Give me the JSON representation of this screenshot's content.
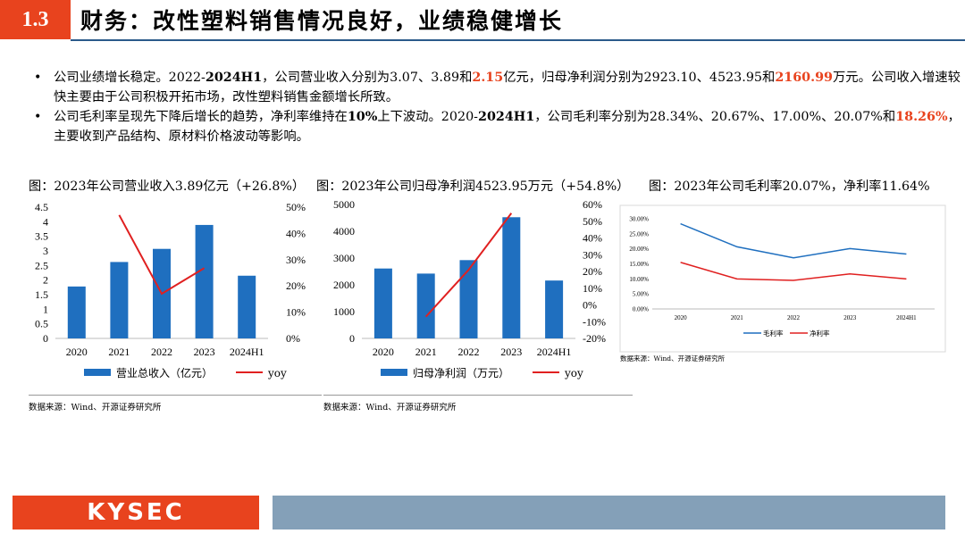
{
  "header": {
    "section_number": "1.3",
    "title": "财务：改性塑料销售情况良好，业绩稳健增长"
  },
  "bullets": [
    {
      "parts": [
        {
          "t": "公司业绩增长稳定。2022-"
        },
        {
          "t": "2024H1",
          "s": "b"
        },
        {
          "t": "，公司营业收入分别为3.07、3.89和"
        },
        {
          "t": "2.15",
          "s": "hl"
        },
        {
          "t": "亿元，归母净利润分别为2923.10、4523.95和"
        },
        {
          "t": "2160.99",
          "s": "hl"
        },
        {
          "t": "万元。公司收入增速较快主要由于公司积极开拓市场，改性塑料销售金额增长所致。"
        }
      ]
    },
    {
      "parts": [
        {
          "t": "公司毛利率呈现先下降后增长的趋势，净利率维持在"
        },
        {
          "t": "10%",
          "s": "b"
        },
        {
          "t": "上下波动。2020-"
        },
        {
          "t": "2024H1",
          "s": "b"
        },
        {
          "t": "，公司毛利率分别为28.34%、20.67%、17.00%、20.07%和"
        },
        {
          "t": "18.26%",
          "s": "hl"
        },
        {
          "t": "，主要收到产品结构、原材料价格波动等影响。"
        }
      ]
    }
  ],
  "captions": {
    "c1": "图：2023年公司营业收入3.89亿元（+26.8%）",
    "c2": "图：2023年公司归母净利润4523.95万元（+54.8%）",
    "c3": "图：2023年公司毛利率20.07%，净利率11.64%"
  },
  "sources": {
    "s1": "数据来源：Wind、开源证券研究所",
    "s2": "数据来源：Wind、开源证券研究所",
    "s3": "数据来源：Wind、开源证券研究所"
  },
  "footer": {
    "logo": "KYSEC"
  },
  "colors": {
    "accent": "#e8431e",
    "bar": "#1f6fbf",
    "line": "#e02020",
    "rule": "#2b5a8a"
  },
  "chart_data": [
    {
      "type": "bar",
      "categories": [
        "2020",
        "2021",
        "2022",
        "2023",
        "2024H1"
      ],
      "series": [
        {
          "name": "营业总收入（亿元）",
          "axis": "left",
          "kind": "bar",
          "values": [
            1.78,
            2.62,
            3.07,
            3.89,
            2.15
          ]
        },
        {
          "name": "yoy",
          "axis": "right",
          "kind": "line",
          "values": [
            null,
            0.47,
            0.17,
            0.268,
            null
          ]
        }
      ],
      "ylim_left": [
        0,
        4.5
      ],
      "yticks_left": [
        "0",
        "0.5",
        "1",
        "1.5",
        "2",
        "2.5",
        "3",
        "3.5",
        "4",
        "4.5"
      ],
      "ylim_right": [
        0,
        0.5
      ],
      "yticks_right": [
        "0%",
        "10%",
        "20%",
        "30%",
        "40%",
        "50%"
      ],
      "legend": "bottom"
    },
    {
      "type": "bar",
      "categories": [
        "2020",
        "2021",
        "2022",
        "2023",
        "2024H1"
      ],
      "series": [
        {
          "name": "归母净利润（万元）",
          "axis": "left",
          "kind": "bar",
          "values": [
            2610,
            2420,
            2923.1,
            4523.95,
            2160.99
          ]
        },
        {
          "name": "yoy",
          "axis": "right",
          "kind": "line",
          "values": [
            null,
            -0.07,
            0.21,
            0.548,
            null
          ]
        }
      ],
      "ylim_left": [
        0,
        5000
      ],
      "yticks_left": [
        "0",
        "1000",
        "2000",
        "3000",
        "4000",
        "5000"
      ],
      "ylim_right": [
        -0.2,
        0.6
      ],
      "yticks_right": [
        "-20%",
        "-10%",
        "0%",
        "10%",
        "20%",
        "30%",
        "40%",
        "50%",
        "60%"
      ],
      "legend": "bottom"
    },
    {
      "type": "line",
      "categories": [
        "2020",
        "2021",
        "2022",
        "2023",
        "2024H1"
      ],
      "series": [
        {
          "name": "毛利率",
          "color": "#1f6fbf",
          "values": [
            0.2834,
            0.2067,
            0.17,
            0.2007,
            0.1826
          ]
        },
        {
          "name": "净利率",
          "color": "#e02020",
          "values": [
            0.155,
            0.1,
            0.095,
            0.1164,
            0.1
          ]
        }
      ],
      "ylim": [
        0,
        0.3
      ],
      "yticks": [
        "0.00%",
        "5.00%",
        "10.00%",
        "15.00%",
        "20.00%",
        "25.00%",
        "30.00%"
      ],
      "legend": "bottom"
    }
  ]
}
